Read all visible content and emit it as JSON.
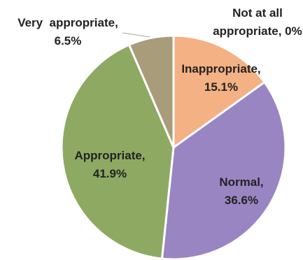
{
  "chart_data": {
    "type": "pie",
    "slices": [
      {
        "name": "Not at all appropriate",
        "value": 0,
        "label_lines": [
          "Not at all",
          "appropriate, 0%"
        ],
        "color": "#F4B183"
      },
      {
        "name": "Inappropriate",
        "value": 15.1,
        "label_lines": [
          "Inappropriate,",
          "15.1%"
        ],
        "color": "#F4B183"
      },
      {
        "name": "Normal",
        "value": 36.6,
        "label_lines": [
          "Normal,",
          "36.6%"
        ],
        "color": "#9A85C3"
      },
      {
        "name": "Appropriate",
        "value": 41.9,
        "label_lines": [
          "Appropriate,",
          "41.9%"
        ],
        "color": "#8EAA62"
      },
      {
        "name": "Very appropriate",
        "value": 6.5,
        "label_lines": [
          "Very  appropriate,",
          "6.5%"
        ],
        "color": "#A99C7B"
      }
    ],
    "start_angle_deg": 0,
    "direction": "clockwise",
    "legend": "none"
  }
}
